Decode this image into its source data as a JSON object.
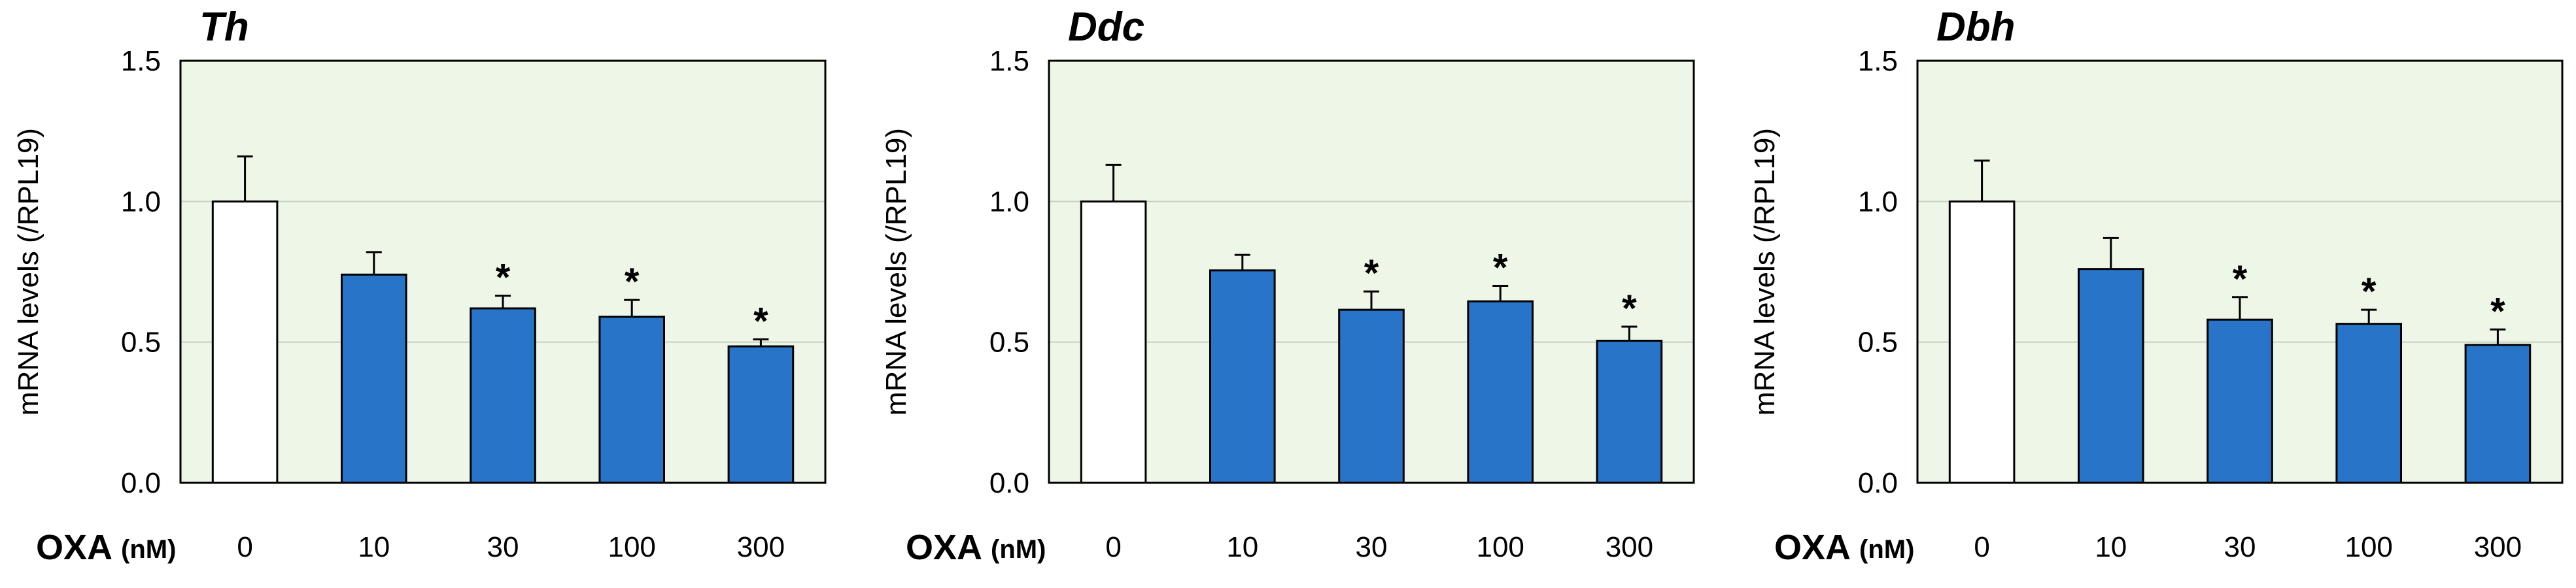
{
  "colors": {
    "plot_bg": "#edf6e7",
    "control_bar": "#ffffff",
    "treated_bar": "#2874c9",
    "bar_edge": "#000000",
    "grid": "#c8d0c4"
  },
  "x_title": {
    "main": "OXA",
    "unit": "(nM)"
  },
  "chart_data": [
    {
      "type": "bar",
      "title": "Th",
      "xlabel": "OXA (nM)",
      "ylabel": "mRNA levels (/RPL19)",
      "ylim": [
        0,
        1.5
      ],
      "yticks": [
        "0.0",
        "0.5",
        "1.0",
        "1.5"
      ],
      "categories": [
        "0",
        "10",
        "30",
        "100",
        "300"
      ],
      "values": [
        1.0,
        0.74,
        0.62,
        0.59,
        0.485
      ],
      "errors": [
        0.16,
        0.08,
        0.045,
        0.06,
        0.025
      ],
      "significant": [
        false,
        false,
        true,
        true,
        true
      ],
      "annotation": "*",
      "grid": true
    },
    {
      "type": "bar",
      "title": "Ddc",
      "xlabel": "OXA (nM)",
      "ylabel": "mRNA levels (/RPL19)",
      "ylim": [
        0,
        1.5
      ],
      "yticks": [
        "0.0",
        "0.5",
        "1.0",
        "1.5"
      ],
      "categories": [
        "0",
        "10",
        "30",
        "100",
        "300"
      ],
      "values": [
        1.0,
        0.755,
        0.615,
        0.645,
        0.505
      ],
      "errors": [
        0.13,
        0.055,
        0.065,
        0.055,
        0.05
      ],
      "significant": [
        false,
        false,
        true,
        true,
        true
      ],
      "annotation": "*",
      "grid": true
    },
    {
      "type": "bar",
      "title": "Dbh",
      "xlabel": "OXA (nM)",
      "ylabel": "mRNA levels (/RPL19)",
      "ylim": [
        0,
        1.5
      ],
      "yticks": [
        "0.0",
        "0.5",
        "1.0",
        "1.5"
      ],
      "categories": [
        "0",
        "10",
        "30",
        "100",
        "300"
      ],
      "values": [
        1.0,
        0.76,
        0.58,
        0.565,
        0.49
      ],
      "errors": [
        0.145,
        0.11,
        0.08,
        0.05,
        0.055
      ],
      "significant": [
        false,
        false,
        true,
        true,
        true
      ],
      "annotation": "*",
      "grid": true
    }
  ]
}
